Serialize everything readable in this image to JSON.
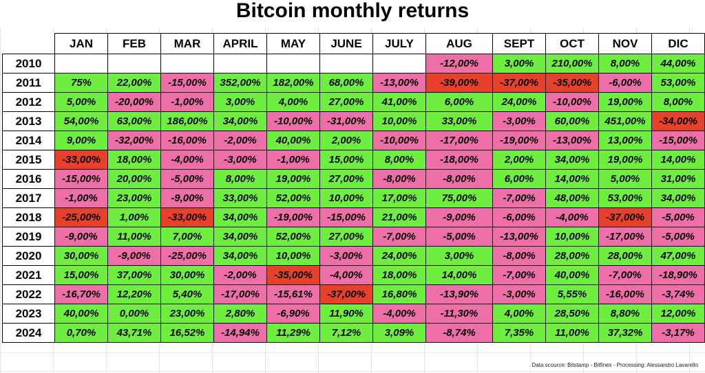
{
  "title": "Bitcoin monthly returns",
  "source_note": "Data scource: Bitstamp - Bitfinex - Processing: Alessandro Lavarello",
  "colors": {
    "positive": "#6eef3f",
    "negative": "#ee6fa7",
    "strong_negative": "#e8412b"
  },
  "chart_data": {
    "type": "table",
    "title": "Bitcoin monthly returns",
    "columns": [
      "JAN",
      "FEB",
      "MAR",
      "APRIL",
      "MAY",
      "JUNE",
      "JULY",
      "AUG",
      "SEPT",
      "OCT",
      "NOV",
      "DIC"
    ],
    "rows": [
      {
        "year": "2010",
        "cells": [
          {
            "text": "",
            "tone": "empty"
          },
          {
            "text": "",
            "tone": "empty"
          },
          {
            "text": "",
            "tone": "empty"
          },
          {
            "text": "",
            "tone": "empty"
          },
          {
            "text": "",
            "tone": "empty"
          },
          {
            "text": "",
            "tone": "empty"
          },
          {
            "text": "",
            "tone": "empty"
          },
          {
            "text": "-12,00%",
            "tone": "neg"
          },
          {
            "text": "3,00%",
            "tone": "pos"
          },
          {
            "text": "210,00%",
            "tone": "pos"
          },
          {
            "text": "8,00%",
            "tone": "pos"
          },
          {
            "text": "44,00%",
            "tone": "pos"
          }
        ]
      },
      {
        "year": "2011",
        "cells": [
          {
            "text": "75%",
            "tone": "pos"
          },
          {
            "text": "22,00%",
            "tone": "pos"
          },
          {
            "text": "-15,00%",
            "tone": "neg"
          },
          {
            "text": "352,00%",
            "tone": "pos"
          },
          {
            "text": "182,00%",
            "tone": "pos"
          },
          {
            "text": "68,00%",
            "tone": "pos"
          },
          {
            "text": "-13,00%",
            "tone": "neg"
          },
          {
            "text": "-39,00%",
            "tone": "deep"
          },
          {
            "text": "-37,00%",
            "tone": "deep"
          },
          {
            "text": "-35,00%",
            "tone": "deep"
          },
          {
            "text": "-6,00%",
            "tone": "neg"
          },
          {
            "text": "53,00%",
            "tone": "pos"
          }
        ]
      },
      {
        "year": "2012",
        "cells": [
          {
            "text": "5,00%",
            "tone": "pos"
          },
          {
            "text": "-20,00%",
            "tone": "neg"
          },
          {
            "text": "-1,00%",
            "tone": "neg"
          },
          {
            "text": "3,00%",
            "tone": "pos"
          },
          {
            "text": "4,00%",
            "tone": "pos"
          },
          {
            "text": "27,00%",
            "tone": "pos"
          },
          {
            "text": "41,00%",
            "tone": "pos"
          },
          {
            "text": "6,00%",
            "tone": "pos"
          },
          {
            "text": "24,00%",
            "tone": "pos"
          },
          {
            "text": "-10,00%",
            "tone": "neg"
          },
          {
            "text": "19,00%",
            "tone": "pos"
          },
          {
            "text": "8,00%",
            "tone": "pos"
          }
        ]
      },
      {
        "year": "2013",
        "cells": [
          {
            "text": "54,00%",
            "tone": "pos"
          },
          {
            "text": "63,00%",
            "tone": "pos"
          },
          {
            "text": "186,00%",
            "tone": "pos"
          },
          {
            "text": "34,00%",
            "tone": "pos"
          },
          {
            "text": "-10,00%",
            "tone": "neg"
          },
          {
            "text": "-31,00%",
            "tone": "neg"
          },
          {
            "text": "10,00%",
            "tone": "pos"
          },
          {
            "text": "33,00%",
            "tone": "pos"
          },
          {
            "text": "-3,00%",
            "tone": "neg"
          },
          {
            "text": "60,00%",
            "tone": "pos"
          },
          {
            "text": "451,00%",
            "tone": "pos"
          },
          {
            "text": "-34,00%",
            "tone": "deep"
          }
        ]
      },
      {
        "year": "2014",
        "cells": [
          {
            "text": "9,00%",
            "tone": "pos"
          },
          {
            "text": "-32,00%",
            "tone": "neg"
          },
          {
            "text": "-16,00%",
            "tone": "neg"
          },
          {
            "text": "-2,00%",
            "tone": "neg"
          },
          {
            "text": "40,00%",
            "tone": "pos"
          },
          {
            "text": "2,00%",
            "tone": "pos"
          },
          {
            "text": "-10,00%",
            "tone": "neg"
          },
          {
            "text": "-17,00%",
            "tone": "neg"
          },
          {
            "text": "-19,00%",
            "tone": "neg"
          },
          {
            "text": "-13,00%",
            "tone": "neg"
          },
          {
            "text": "13,00%",
            "tone": "pos"
          },
          {
            "text": "-15,00%",
            "tone": "neg"
          }
        ]
      },
      {
        "year": "2015",
        "cells": [
          {
            "text": "-33,00%",
            "tone": "deep"
          },
          {
            "text": "18,00%",
            "tone": "pos"
          },
          {
            "text": "-4,00%",
            "tone": "neg"
          },
          {
            "text": "-3,00%",
            "tone": "neg"
          },
          {
            "text": "-1,00%",
            "tone": "neg"
          },
          {
            "text": "15,00%",
            "tone": "pos"
          },
          {
            "text": "8,00%",
            "tone": "pos"
          },
          {
            "text": "-18,00%",
            "tone": "neg"
          },
          {
            "text": "2,00%",
            "tone": "pos"
          },
          {
            "text": "34,00%",
            "tone": "pos"
          },
          {
            "text": "19,00%",
            "tone": "pos"
          },
          {
            "text": "14,00%",
            "tone": "pos"
          }
        ]
      },
      {
        "year": "2016",
        "cells": [
          {
            "text": "-15,00%",
            "tone": "neg"
          },
          {
            "text": "20,00%",
            "tone": "pos"
          },
          {
            "text": "-5,00%",
            "tone": "neg"
          },
          {
            "text": "8,00%",
            "tone": "pos"
          },
          {
            "text": "19,00%",
            "tone": "pos"
          },
          {
            "text": "27,00%",
            "tone": "pos"
          },
          {
            "text": "-8,00%",
            "tone": "neg"
          },
          {
            "text": "-8,00%",
            "tone": "neg"
          },
          {
            "text": "6,00%",
            "tone": "pos"
          },
          {
            "text": "14,00%",
            "tone": "pos"
          },
          {
            "text": "5,00%",
            "tone": "pos"
          },
          {
            "text": "31,00%",
            "tone": "pos"
          }
        ]
      },
      {
        "year": "2017",
        "cells": [
          {
            "text": "-1,00%",
            "tone": "neg"
          },
          {
            "text": "23,00%",
            "tone": "pos"
          },
          {
            "text": "-9,00%",
            "tone": "neg"
          },
          {
            "text": "33,00%",
            "tone": "pos"
          },
          {
            "text": "52,00%",
            "tone": "pos"
          },
          {
            "text": "10,00%",
            "tone": "pos"
          },
          {
            "text": "17,00%",
            "tone": "pos"
          },
          {
            "text": "75,00%",
            "tone": "pos"
          },
          {
            "text": "-7,00%",
            "tone": "neg"
          },
          {
            "text": "48,00%",
            "tone": "pos"
          },
          {
            "text": "53,00%",
            "tone": "pos"
          },
          {
            "text": "34,00%",
            "tone": "pos"
          }
        ]
      },
      {
        "year": "2018",
        "cells": [
          {
            "text": "-25,00%",
            "tone": "deep"
          },
          {
            "text": "1,00%",
            "tone": "pos"
          },
          {
            "text": "-33,00%",
            "tone": "deep"
          },
          {
            "text": "34,00%",
            "tone": "pos"
          },
          {
            "text": "-19,00%",
            "tone": "neg"
          },
          {
            "text": "-15,00%",
            "tone": "neg"
          },
          {
            "text": "21,00%",
            "tone": "pos"
          },
          {
            "text": "-9,00%",
            "tone": "neg"
          },
          {
            "text": "-6,00%",
            "tone": "neg"
          },
          {
            "text": "-4,00%",
            "tone": "neg"
          },
          {
            "text": "-37,00%",
            "tone": "deep"
          },
          {
            "text": "-5,00%",
            "tone": "neg"
          }
        ]
      },
      {
        "year": "2019",
        "cells": [
          {
            "text": "-9,00%",
            "tone": "neg"
          },
          {
            "text": "11,00%",
            "tone": "pos"
          },
          {
            "text": "7,00%",
            "tone": "pos"
          },
          {
            "text": "34,00%",
            "tone": "pos"
          },
          {
            "text": "52,00%",
            "tone": "pos"
          },
          {
            "text": "27,00%",
            "tone": "pos"
          },
          {
            "text": "-7,00%",
            "tone": "neg"
          },
          {
            "text": "-5,00%",
            "tone": "neg"
          },
          {
            "text": "-13,00%",
            "tone": "neg"
          },
          {
            "text": "10,00%",
            "tone": "pos"
          },
          {
            "text": "-17,00%",
            "tone": "neg"
          },
          {
            "text": "-5,00%",
            "tone": "neg"
          }
        ]
      },
      {
        "year": "2020",
        "cells": [
          {
            "text": "30,00%",
            "tone": "pos"
          },
          {
            "text": "-9,00%",
            "tone": "neg"
          },
          {
            "text": "-25,00%",
            "tone": "neg"
          },
          {
            "text": "34,00%",
            "tone": "pos"
          },
          {
            "text": "10,00%",
            "tone": "pos"
          },
          {
            "text": "-3,00%",
            "tone": "neg"
          },
          {
            "text": "24,00%",
            "tone": "pos"
          },
          {
            "text": "3,00%",
            "tone": "pos"
          },
          {
            "text": "-8,00%",
            "tone": "neg"
          },
          {
            "text": "28,00%",
            "tone": "pos"
          },
          {
            "text": "28,00%",
            "tone": "pos"
          },
          {
            "text": "47,00%",
            "tone": "pos"
          }
        ]
      },
      {
        "year": "2021",
        "cells": [
          {
            "text": "15,00%",
            "tone": "pos"
          },
          {
            "text": "37,00%",
            "tone": "pos"
          },
          {
            "text": "30,00%",
            "tone": "pos"
          },
          {
            "text": "-2,00%",
            "tone": "neg"
          },
          {
            "text": "-35,00%",
            "tone": "deep"
          },
          {
            "text": "-4,00%",
            "tone": "neg"
          },
          {
            "text": "18,00%",
            "tone": "pos"
          },
          {
            "text": "14,00%",
            "tone": "pos"
          },
          {
            "text": "-7,00%",
            "tone": "neg"
          },
          {
            "text": "40,00%",
            "tone": "pos"
          },
          {
            "text": "-7,00%",
            "tone": "neg"
          },
          {
            "text": "-18,90%",
            "tone": "neg"
          }
        ]
      },
      {
        "year": "2022",
        "cells": [
          {
            "text": "-16,70%",
            "tone": "neg"
          },
          {
            "text": "12,20%",
            "tone": "pos"
          },
          {
            "text": "5,40%",
            "tone": "pos"
          },
          {
            "text": "-17,00%",
            "tone": "neg"
          },
          {
            "text": "-15,61%",
            "tone": "neg"
          },
          {
            "text": "-37,00%",
            "tone": "deep"
          },
          {
            "text": "16,80%",
            "tone": "pos"
          },
          {
            "text": "-13,90%",
            "tone": "neg"
          },
          {
            "text": "-3,00%",
            "tone": "neg"
          },
          {
            "text": "5,55%",
            "tone": "pos"
          },
          {
            "text": "-16,00%",
            "tone": "neg"
          },
          {
            "text": "-3,74%",
            "tone": "neg"
          }
        ]
      },
      {
        "year": "2023",
        "cells": [
          {
            "text": "40,00%",
            "tone": "pos"
          },
          {
            "text": "0,00%",
            "tone": "pos"
          },
          {
            "text": "23,00%",
            "tone": "pos"
          },
          {
            "text": "2,80%",
            "tone": "pos"
          },
          {
            "text": "-6,90%",
            "tone": "neg"
          },
          {
            "text": "11,90%",
            "tone": "pos"
          },
          {
            "text": "-4,00%",
            "tone": "neg"
          },
          {
            "text": "-11,30%",
            "tone": "neg"
          },
          {
            "text": "4,00%",
            "tone": "pos"
          },
          {
            "text": "28,50%",
            "tone": "pos"
          },
          {
            "text": "8,80%",
            "tone": "pos"
          },
          {
            "text": "12,00%",
            "tone": "pos"
          }
        ]
      },
      {
        "year": "2024",
        "cells": [
          {
            "text": "0,70%",
            "tone": "pos"
          },
          {
            "text": "43,71%",
            "tone": "pos"
          },
          {
            "text": "16,52%",
            "tone": "pos"
          },
          {
            "text": "-14,94%",
            "tone": "neg"
          },
          {
            "text": "11,29%",
            "tone": "pos"
          },
          {
            "text": "7,12%",
            "tone": "pos"
          },
          {
            "text": "3,09%",
            "tone": "pos"
          },
          {
            "text": "-8,74%",
            "tone": "neg"
          },
          {
            "text": "7,35%",
            "tone": "pos"
          },
          {
            "text": "11,00%",
            "tone": "pos"
          },
          {
            "text": "37,32%",
            "tone": "pos"
          },
          {
            "text": "-3,17%",
            "tone": "neg"
          }
        ]
      }
    ]
  }
}
